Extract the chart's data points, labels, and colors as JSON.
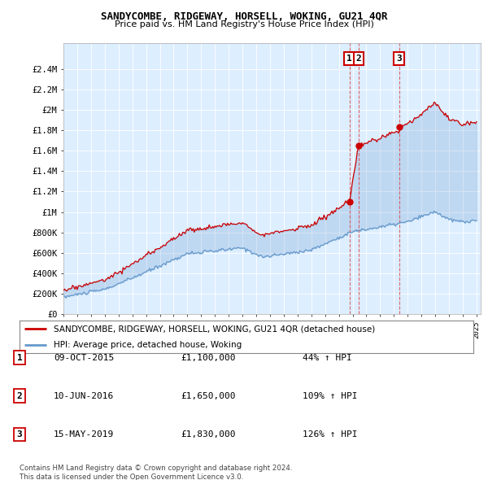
{
  "title": "SANDYCOMBE, RIDGEWAY, HORSELL, WOKING, GU21 4QR",
  "subtitle": "Price paid vs. HM Land Registry's House Price Index (HPI)",
  "ylabel_ticks": [
    "£0",
    "£200K",
    "£400K",
    "£600K",
    "£800K",
    "£1M",
    "£1.2M",
    "£1.4M",
    "£1.6M",
    "£1.8M",
    "£2M",
    "£2.2M",
    "£2.4M"
  ],
  "ytick_values": [
    0,
    200000,
    400000,
    600000,
    800000,
    1000000,
    1200000,
    1400000,
    1600000,
    1800000,
    2000000,
    2200000,
    2400000
  ],
  "ylim": [
    0,
    2650000
  ],
  "sale_prices": [
    1100000,
    1650000,
    1830000
  ],
  "sale_year_nums": [
    2015.77,
    2016.44,
    2019.37
  ],
  "sale_labels": [
    "1",
    "2",
    "3"
  ],
  "sale_info": [
    {
      "num": "1",
      "date": "09-OCT-2015",
      "price": "£1,100,000",
      "pct": "44% ↑ HPI"
    },
    {
      "num": "2",
      "date": "10-JUN-2016",
      "price": "£1,650,000",
      "pct": "109% ↑ HPI"
    },
    {
      "num": "3",
      "date": "15-MAY-2019",
      "price": "£1,830,000",
      "pct": "126% ↑ HPI"
    }
  ],
  "legend_red_label": "SANDYCOMBE, RIDGEWAY, HORSELL, WOKING, GU21 4QR (detached house)",
  "legend_blue_label": "HPI: Average price, detached house, Woking",
  "footer": "Contains HM Land Registry data © Crown copyright and database right 2024.\nThis data is licensed under the Open Government Licence v3.0.",
  "red_color": "#cc0000",
  "blue_color": "#6699cc",
  "plot_bg_color": "#ddeeff",
  "background_color": "#ffffff",
  "grid_color": "#ffffff"
}
